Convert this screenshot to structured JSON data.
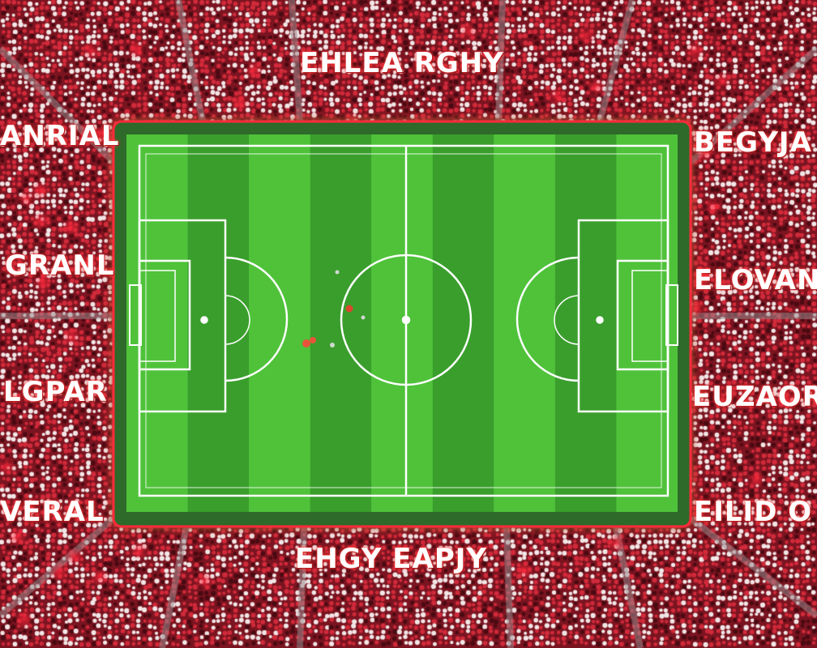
{
  "scene": {
    "subject": "aerial-stadium",
    "colors": {
      "crowd_base": "#7a1420",
      "crowd_dot_light": "#f2e6e6",
      "crowd_dot_red": "#d12a3a",
      "aisle": "#9a8a8e",
      "pitch_light": "#4fc23a",
      "pitch_dark": "#3a9e2c",
      "pitch_border": "#2f6a2a",
      "line": "#ffffff",
      "glow": "#ff2a3a"
    }
  },
  "stand_labels": {
    "top": "EHLEA RGHY",
    "left_1": "ANRIAL",
    "left_2": "GRANL",
    "left_3": "LGPAR",
    "left_4": "VERAL",
    "right_1": "BEGYJA",
    "right_2": "ELOVAN",
    "right_3": "EUZAOR",
    "right_4": "EILID O",
    "bottom": "EHGY EAPJY"
  }
}
